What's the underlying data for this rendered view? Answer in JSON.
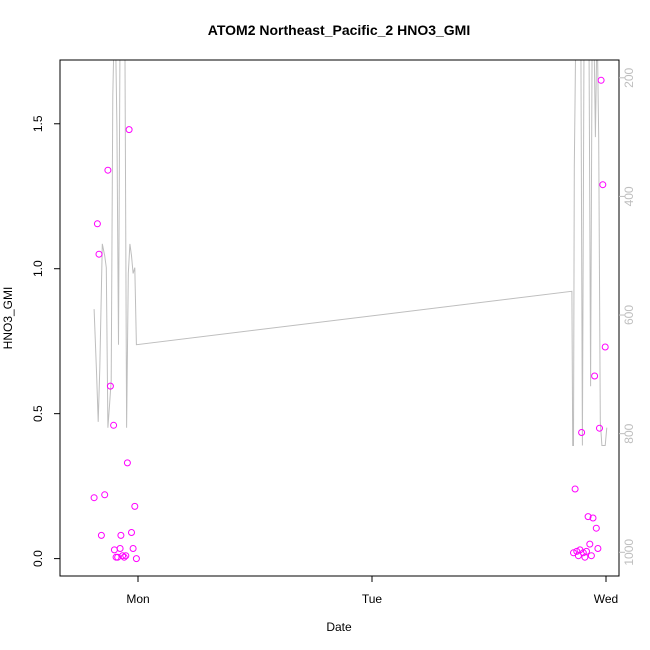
{
  "chart_data": {
    "type": "scatter",
    "title": "ATOM2 Northeast_Pacific_2 HNO3_GMI",
    "xlabel": "Date",
    "ylabel": "HNO3_GMI",
    "x_ticks": [
      "Mon",
      "Tue",
      "Wed"
    ],
    "y_ticks": [
      "0.0",
      "0.5",
      "1.0",
      "1.5"
    ],
    "y_right_ticks": [
      "200",
      "400",
      "600",
      "800",
      "1000"
    ],
    "ylim": [
      -0.06,
      1.72
    ],
    "y_right_lim": [
      1040,
      170
    ],
    "y_right_reversed": true,
    "grid": false,
    "series": [
      {
        "kind": "points",
        "color": "#ff00ff",
        "x": [
          "Sun 19:30",
          "Sun 19:50",
          "Sun 20:00",
          "Sun 20:15",
          "Sun 20:35",
          "Sun 20:55",
          "Sun 21:10",
          "Sun 21:30",
          "Sun 21:35",
          "Sun 21:45",
          "Sun 21:55",
          "Sun 22:10",
          "Sun 22:15",
          "Sun 22:25",
          "Sun 22:35",
          "Sun 22:45",
          "Sun 22:55",
          "Sun 23:05",
          "Sun 23:20",
          "Sun 23:30",
          "Sun 23:40",
          "Sun 23:50",
          "Tue 20:40",
          "Tue 20:50",
          "Tue 21:00",
          "Tue 21:10",
          "Tue 21:20",
          "Tue 21:30",
          "Tue 21:40",
          "Tue 21:50",
          "Tue 22:00",
          "Tue 22:10",
          "Tue 22:20",
          "Tue 22:30",
          "Tue 22:40",
          "Tue 22:50",
          "Tue 23:00",
          "Tue 23:10",
          "Tue 23:20",
          "Tue 23:30",
          "Tue 23:40",
          "Tue 23:55"
        ],
        "y": [
          0.21,
          1.155,
          1.05,
          0.08,
          0.22,
          1.34,
          0.595,
          0.46,
          0.03,
          0.005,
          0.005,
          0.035,
          0.08,
          0.01,
          0.005,
          0.01,
          0.33,
          1.48,
          0.09,
          0.035,
          0.18,
          0.0,
          0.02,
          0.24,
          0.025,
          0.01,
          0.03,
          0.435,
          0.02,
          0.005,
          0.025,
          0.145,
          0.05,
          0.01,
          0.14,
          0.63,
          0.105,
          0.035,
          0.45,
          1.65,
          1.29,
          0.73
        ]
      },
      {
        "kind": "line",
        "axis": "right",
        "color": "#bebebe",
        "x": [
          "Sun 19:30",
          "Sun 19:45",
          "Sun 19:55",
          "Sun 20:05",
          "Sun 20:20",
          "Sun 20:35",
          "Sun 20:45",
          "Sun 20:55",
          "Sun 21:05",
          "Sun 21:15",
          "Sun 21:25",
          "Sun 21:35",
          "Sun 21:40",
          "Sun 21:50",
          "Sun 22:00",
          "Sun 22:10",
          "Sun 22:20",
          "Sun 22:30",
          "Sun 22:40",
          "Sun 22:50",
          "Sun 23:00",
          "Sun 23:10",
          "Sun 23:20",
          "Sun 23:30",
          "Sun 23:40",
          "Sun 23:50",
          "Tue 20:30",
          "Tue 20:35",
          "Tue 20:40",
          "Tue 20:45",
          "Tue 20:50",
          "Tue 20:55",
          "Tue 21:05",
          "Tue 21:15",
          "Tue 21:25",
          "Tue 21:35",
          "Tue 21:45",
          "Tue 21:55",
          "Tue 22:05",
          "Tue 22:15",
          "Tue 22:25",
          "Tue 22:35",
          "Tue 22:45",
          "Tue 22:55",
          "Tue 23:05",
          "Tue 23:15",
          "Tue 23:25",
          "Tue 23:35",
          "Tue 23:45",
          "Tue 23:55",
          "Tue 24:05"
        ],
        "y": [
          590,
          700,
          780,
          690,
          480,
          500,
          520,
          790,
          750,
          710,
          230,
          100,
          100,
          280,
          650,
          100,
          100,
          150,
          170,
          790,
          530,
          480,
          500,
          530,
          520,
          650,
          560,
          820,
          820,
          350,
          230,
          100,
          100,
          100,
          100,
          820,
          100,
          100,
          100,
          100,
          720,
          100,
          100,
          300,
          100,
          300,
          780,
          820,
          820,
          820,
          790
        ]
      }
    ]
  }
}
